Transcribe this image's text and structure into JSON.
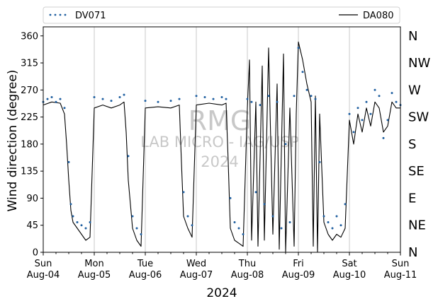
{
  "chart_data": {
    "type": "line",
    "xlabel": "2024",
    "ylabel": "Wind direction (degree)",
    "ylim": [
      0,
      375
    ],
    "y_ticks": [
      0,
      45,
      90,
      135,
      180,
      225,
      270,
      315,
      360
    ],
    "xlim": [
      "2024-08-04T00:00",
      "2024-08-11T00:00"
    ],
    "x_ticks": [
      {
        "weekday": "Sun",
        "date": "Aug-04"
      },
      {
        "weekday": "Mon",
        "date": "Aug-05"
      },
      {
        "weekday": "Tue",
        "date": "Aug-06"
      },
      {
        "weekday": "Wed",
        "date": "Aug-07"
      },
      {
        "weekday": "Thu",
        "date": "Aug-08"
      },
      {
        "weekday": "Fri",
        "date": "Aug-09"
      },
      {
        "weekday": "Sat",
        "date": "Aug-10"
      },
      {
        "weekday": "Sun",
        "date": "Aug-11"
      }
    ],
    "right_axis_labels": [
      "N",
      "NE",
      "E",
      "SE",
      "S",
      "SW",
      "W",
      "NW",
      "N"
    ],
    "grid": "vertical lines at day boundaries",
    "legend_position": "top, above plot",
    "watermark": [
      "RMG",
      "LAB MICRO - IAG/USP",
      "2024"
    ],
    "series": [
      {
        "name": "DV071",
        "style": "dotted markers",
        "color": "#1f5fa0",
        "points": [
          [
            "2024-08-04T00:00",
            250
          ],
          [
            "2024-08-04T02:00",
            255
          ],
          [
            "2024-08-04T04:00",
            258
          ],
          [
            "2024-08-04T06:00",
            250
          ],
          [
            "2024-08-04T08:00",
            255
          ],
          [
            "2024-08-04T10:00",
            240
          ],
          [
            "2024-08-04T12:00",
            150
          ],
          [
            "2024-08-04T13:00",
            80
          ],
          [
            "2024-08-04T14:00",
            60
          ],
          [
            "2024-08-04T16:00",
            50
          ],
          [
            "2024-08-04T18:00",
            45
          ],
          [
            "2024-08-04T20:00",
            40
          ],
          [
            "2024-08-04T22:00",
            50
          ],
          [
            "2024-08-05T00:00",
            258
          ],
          [
            "2024-08-05T04:00",
            255
          ],
          [
            "2024-08-05T08:00",
            252
          ],
          [
            "2024-08-05T12:00",
            258
          ],
          [
            "2024-08-05T14:00",
            262
          ],
          [
            "2024-08-05T16:00",
            160
          ],
          [
            "2024-08-05T18:00",
            60
          ],
          [
            "2024-08-05T20:00",
            40
          ],
          [
            "2024-08-05T22:00",
            30
          ],
          [
            "2024-08-06T00:00",
            252
          ],
          [
            "2024-08-06T06:00",
            250
          ],
          [
            "2024-08-06T12:00",
            252
          ],
          [
            "2024-08-06T16:00",
            255
          ],
          [
            "2024-08-06T18:00",
            100
          ],
          [
            "2024-08-06T20:00",
            60
          ],
          [
            "2024-08-06T22:00",
            45
          ],
          [
            "2024-08-07T00:00",
            260
          ],
          [
            "2024-08-07T04:00",
            258
          ],
          [
            "2024-08-07T08:00",
            255
          ],
          [
            "2024-08-07T12:00",
            258
          ],
          [
            "2024-08-07T14:00",
            255
          ],
          [
            "2024-08-07T16:00",
            90
          ],
          [
            "2024-08-07T18:00",
            50
          ],
          [
            "2024-08-07T20:00",
            40
          ],
          [
            "2024-08-07T22:00",
            30
          ],
          [
            "2024-08-08T00:00",
            255
          ],
          [
            "2024-08-08T02:00",
            250
          ],
          [
            "2024-08-08T04:00",
            100
          ],
          [
            "2024-08-08T06:00",
            245
          ],
          [
            "2024-08-08T08:00",
            80
          ],
          [
            "2024-08-08T10:00",
            260
          ],
          [
            "2024-08-08T12:00",
            60
          ],
          [
            "2024-08-08T14:00",
            250
          ],
          [
            "2024-08-08T16:00",
            40
          ],
          [
            "2024-08-08T18:00",
            180
          ],
          [
            "2024-08-08T20:00",
            50
          ],
          [
            "2024-08-08T22:00",
            260
          ],
          [
            "2024-08-09T00:00",
            340
          ],
          [
            "2024-08-09T02:00",
            300
          ],
          [
            "2024-08-09T04:00",
            270
          ],
          [
            "2024-08-09T06:00",
            260
          ],
          [
            "2024-08-09T08:00",
            255
          ],
          [
            "2024-08-09T10:00",
            150
          ],
          [
            "2024-08-09T12:00",
            60
          ],
          [
            "2024-08-09T14:00",
            50
          ],
          [
            "2024-08-09T16:00",
            40
          ],
          [
            "2024-08-09T18:00",
            60
          ],
          [
            "2024-08-09T20:00",
            45
          ],
          [
            "2024-08-09T22:00",
            80
          ],
          [
            "2024-08-10T00:00",
            230
          ],
          [
            "2024-08-10T02:00",
            200
          ],
          [
            "2024-08-10T04:00",
            240
          ],
          [
            "2024-08-10T06:00",
            220
          ],
          [
            "2024-08-10T08:00",
            250
          ],
          [
            "2024-08-10T10:00",
            230
          ],
          [
            "2024-08-10T12:00",
            270
          ],
          [
            "2024-08-10T14:00",
            260
          ],
          [
            "2024-08-10T16:00",
            190
          ],
          [
            "2024-08-10T18:00",
            220
          ],
          [
            "2024-08-10T20:00",
            265
          ],
          [
            "2024-08-10T22:00",
            250
          ],
          [
            "2024-08-11T00:00",
            245
          ]
        ]
      },
      {
        "name": "DA080",
        "style": "solid line",
        "color": "#000000",
        "points": [
          [
            "2024-08-04T00:00",
            245
          ],
          [
            "2024-08-04T04:00",
            250
          ],
          [
            "2024-08-04T08:00",
            248
          ],
          [
            "2024-08-04T10:00",
            230
          ],
          [
            "2024-08-04T11:00",
            180
          ],
          [
            "2024-08-04T12:00",
            120
          ],
          [
            "2024-08-04T13:00",
            70
          ],
          [
            "2024-08-04T14:00",
            50
          ],
          [
            "2024-08-04T16:00",
            40
          ],
          [
            "2024-08-04T18:00",
            30
          ],
          [
            "2024-08-04T20:00",
            20
          ],
          [
            "2024-08-04T22:00",
            25
          ],
          [
            "2024-08-05T00:00",
            240
          ],
          [
            "2024-08-05T04:00",
            245
          ],
          [
            "2024-08-05T08:00",
            240
          ],
          [
            "2024-08-05T12:00",
            245
          ],
          [
            "2024-08-05T14:00",
            250
          ],
          [
            "2024-08-05T15:00",
            200
          ],
          [
            "2024-08-05T16:00",
            120
          ],
          [
            "2024-08-05T18:00",
            40
          ],
          [
            "2024-08-05T20:00",
            20
          ],
          [
            "2024-08-05T22:00",
            10
          ],
          [
            "2024-08-06T00:00",
            240
          ],
          [
            "2024-08-06T06:00",
            242
          ],
          [
            "2024-08-06T12:00",
            240
          ],
          [
            "2024-08-06T16:00",
            245
          ],
          [
            "2024-08-06T17:00",
            150
          ],
          [
            "2024-08-06T18:00",
            60
          ],
          [
            "2024-08-06T20:00",
            40
          ],
          [
            "2024-08-06T22:00",
            25
          ],
          [
            "2024-08-07T00:00",
            245
          ],
          [
            "2024-08-07T06:00",
            248
          ],
          [
            "2024-08-07T12:00",
            245
          ],
          [
            "2024-08-07T14:00",
            248
          ],
          [
            "2024-08-07T15:00",
            150
          ],
          [
            "2024-08-07T16:00",
            40
          ],
          [
            "2024-08-07T18:00",
            20
          ],
          [
            "2024-08-07T20:00",
            15
          ],
          [
            "2024-08-07T22:00",
            10
          ],
          [
            "2024-08-08T00:00",
            240
          ],
          [
            "2024-08-08T01:00",
            320
          ],
          [
            "2024-08-08T02:00",
            20
          ],
          [
            "2024-08-08T04:00",
            250
          ],
          [
            "2024-08-08T05:00",
            10
          ],
          [
            "2024-08-08T07:00",
            310
          ],
          [
            "2024-08-08T08:00",
            20
          ],
          [
            "2024-08-08T10:00",
            340
          ],
          [
            "2024-08-08T12:00",
            30
          ],
          [
            "2024-08-08T14:00",
            280
          ],
          [
            "2024-08-08T15:00",
            5
          ],
          [
            "2024-08-08T17:00",
            330
          ],
          [
            "2024-08-08T18:00",
            0
          ],
          [
            "2024-08-08T20:00",
            240
          ],
          [
            "2024-08-08T22:00",
            10
          ],
          [
            "2024-08-08T23:00",
            230
          ],
          [
            "2024-08-09T00:00",
            350
          ],
          [
            "2024-08-09T02:00",
            320
          ],
          [
            "2024-08-09T04:00",
            280
          ],
          [
            "2024-08-09T06:00",
            250
          ],
          [
            "2024-08-09T07:00",
            10
          ],
          [
            "2024-08-09T08:00",
            260
          ],
          [
            "2024-08-09T09:00",
            0
          ],
          [
            "2024-08-09T10:00",
            230
          ],
          [
            "2024-08-09T12:00",
            50
          ],
          [
            "2024-08-09T14:00",
            30
          ],
          [
            "2024-08-09T16:00",
            20
          ],
          [
            "2024-08-09T18:00",
            30
          ],
          [
            "2024-08-09T20:00",
            25
          ],
          [
            "2024-08-09T22:00",
            40
          ],
          [
            "2024-08-10T00:00",
            220
          ],
          [
            "2024-08-10T02:00",
            180
          ],
          [
            "2024-08-10T04:00",
            230
          ],
          [
            "2024-08-10T06:00",
            200
          ],
          [
            "2024-08-10T08:00",
            240
          ],
          [
            "2024-08-10T10:00",
            210
          ],
          [
            "2024-08-10T12:00",
            250
          ],
          [
            "2024-08-10T14:00",
            240
          ],
          [
            "2024-08-10T16:00",
            200
          ],
          [
            "2024-08-10T18:00",
            210
          ],
          [
            "2024-08-10T20:00",
            250
          ],
          [
            "2024-08-10T22:00",
            240
          ],
          [
            "2024-08-11T00:00",
            240
          ]
        ]
      }
    ]
  }
}
